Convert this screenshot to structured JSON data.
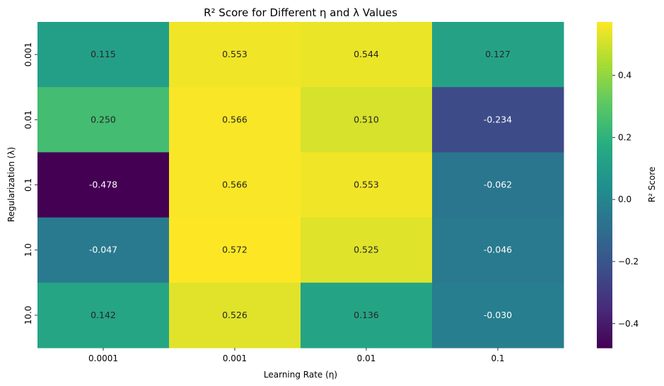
{
  "chart_data": {
    "type": "heatmap",
    "title": "R² Score for Different η and λ Values",
    "xlabel": "Learning Rate (η)",
    "ylabel": "Regularization (λ)",
    "x": [
      "0.0001",
      "0.001",
      "0.01",
      "0.1"
    ],
    "y": [
      "0.001",
      "0.01",
      "0.1",
      "1.0",
      "10.0"
    ],
    "values": [
      [
        0.115,
        0.553,
        0.544,
        0.127
      ],
      [
        0.25,
        0.566,
        0.51,
        -0.234
      ],
      [
        -0.478,
        0.566,
        0.553,
        -0.062
      ],
      [
        -0.047,
        0.572,
        0.525,
        -0.046
      ],
      [
        0.142,
        0.526,
        0.136,
        -0.03
      ]
    ],
    "cell_labels": [
      [
        "0.115",
        "0.553",
        "0.544",
        "0.127"
      ],
      [
        "0.250",
        "0.566",
        "0.510",
        "-0.234"
      ],
      [
        "-0.478",
        "0.566",
        "0.553",
        "-0.062"
      ],
      [
        "-0.047",
        "0.572",
        "0.525",
        "-0.046"
      ],
      [
        "0.142",
        "0.526",
        "0.136",
        "-0.030"
      ]
    ],
    "colormap": "viridis",
    "colorbar": {
      "label": "R² Score",
      "vmin": -0.478,
      "vmax": 0.572,
      "ticks": [
        0.4,
        0.2,
        0.0,
        -0.2,
        -0.4
      ],
      "tick_labels": [
        "0.4",
        "0.2",
        "0.0",
        "−0.2",
        "−0.4"
      ]
    }
  }
}
